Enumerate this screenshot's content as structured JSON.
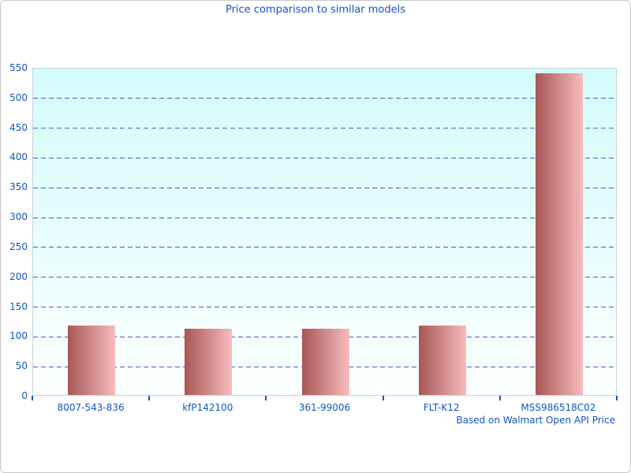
{
  "page": {
    "title": "Price comparison to similar models",
    "footer": "Based on Walmart Open API Price"
  },
  "chart_data": {
    "type": "bar",
    "title": "Price comparison to similar models",
    "categories": [
      "8007-543-836",
      "kfP142100",
      "361-99006",
      "FLT-K12",
      "MSS986518C02"
    ],
    "values": [
      116,
      111,
      111,
      116,
      539
    ],
    "xlabel": "",
    "ylabel": "",
    "ylim": [
      0,
      550
    ],
    "yticks": [
      0,
      50,
      100,
      150,
      200,
      250,
      300,
      350,
      400,
      450,
      500,
      550
    ],
    "grid": "horizontal-dashed",
    "legend": "none",
    "annotation": "Based on Walmart Open API Price",
    "colors": {
      "text_blue": "#1155cc",
      "gridline_blue": "#3a63c6",
      "bar_gradient_left": "#a95656",
      "bar_gradient_right": "#f6bcbc",
      "plot_bg_top": "#d5fbfc",
      "plot_bg_bottom": "#fdffff",
      "plot_border": "#c9d2d4",
      "frame_border": "#c9c9c9"
    }
  }
}
